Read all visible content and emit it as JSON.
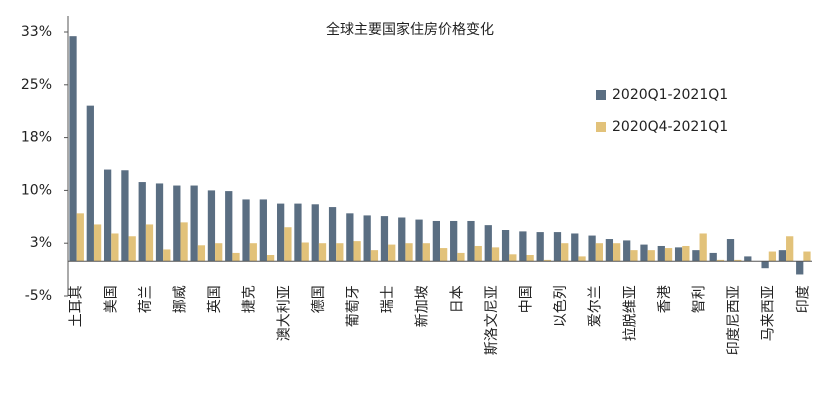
{
  "chart_data": {
    "type": "bar",
    "title": "全球主要国家住房价格变化",
    "categories": [
      "土耳其",
      null,
      "美国",
      null,
      "荷兰",
      null,
      "挪威",
      null,
      "英国",
      null,
      "捷克",
      null,
      "澳大利亚",
      null,
      "德国",
      null,
      "葡萄牙",
      null,
      "瑞士",
      null,
      "新加坡",
      null,
      "日本",
      null,
      "斯洛文尼亚",
      null,
      "中国",
      null,
      "以色列",
      null,
      "爱尔兰",
      null,
      "拉脱维亚",
      null,
      "香港",
      null,
      "智利",
      null,
      "印度尼西亚",
      null,
      "马来西亚",
      null,
      "印度"
    ],
    "series": [
      {
        "name": "2020Q1-2021Q1",
        "color": "#5a6e82",
        "values": [
          32.4,
          22.4,
          13.2,
          13.1,
          11.4,
          11.2,
          10.9,
          10.9,
          10.2,
          10.1,
          8.9,
          8.9,
          8.3,
          8.3,
          8.2,
          7.8,
          6.9,
          6.6,
          6.5,
          6.3,
          6.0,
          5.8,
          5.8,
          5.8,
          5.2,
          4.5,
          4.3,
          4.2,
          4.2,
          4.0,
          3.7,
          3.2,
          3.0,
          2.4,
          2.2,
          2.0,
          1.6,
          1.2,
          3.2,
          0.7,
          -1.0,
          1.6,
          -1.9
        ]
      },
      {
        "name": "2020Q4-2021Q1",
        "color": "#e2c27a",
        "values": [
          6.9,
          5.3,
          4.0,
          3.6,
          5.3,
          1.7,
          5.6,
          2.3,
          2.6,
          1.2,
          2.6,
          0.9,
          4.9,
          2.7,
          2.6,
          2.6,
          2.9,
          1.6,
          2.4,
          2.6,
          2.6,
          1.9,
          1.2,
          2.2,
          2.0,
          1.0,
          0.9,
          0.2,
          2.6,
          0.7,
          2.6,
          2.6,
          1.6,
          1.6,
          1.9,
          2.2,
          4.0,
          0.2,
          0.2,
          0.0,
          1.4,
          3.6,
          1.4
        ]
      }
    ],
    "ylim": [
      -5,
      33
    ],
    "yticks": [
      {
        "value": -5,
        "label": "-5%"
      },
      {
        "value": 2.6,
        "label": "3%"
      },
      {
        "value": 10.2,
        "label": "10%"
      },
      {
        "value": 17.8,
        "label": "18%"
      },
      {
        "value": 25.4,
        "label": "25%"
      },
      {
        "value": 33,
        "label": "33%"
      }
    ],
    "legend": "right"
  }
}
